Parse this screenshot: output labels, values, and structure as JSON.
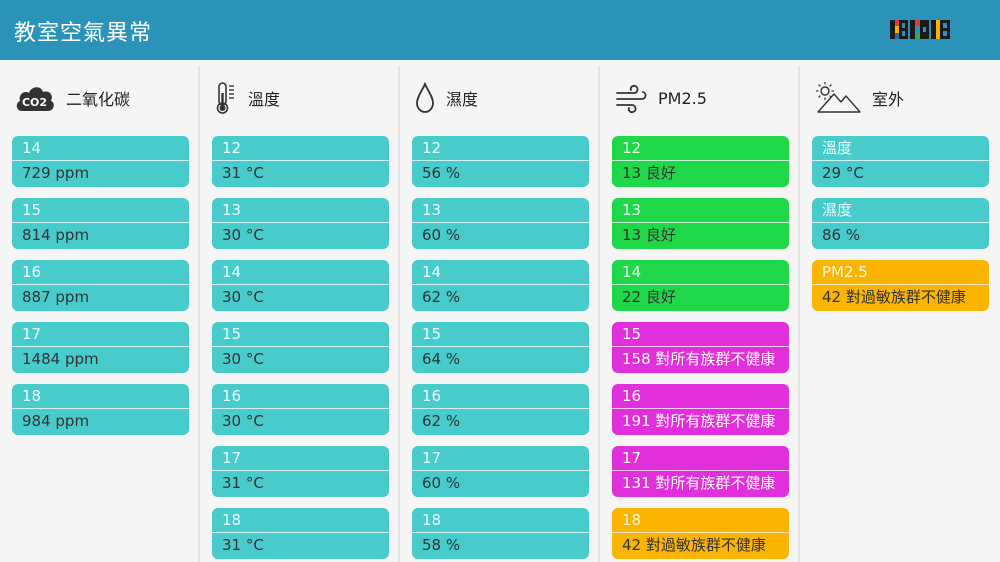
{
  "header": {
    "title": "教室空氣異常",
    "logo_text": "BXB"
  },
  "colors": {
    "header": "#2b93b8",
    "teal": "#48cbcb",
    "green": "#1ed84a",
    "magenta": "#e22fdc",
    "orange": "#fbb400"
  },
  "columns": [
    {
      "key": "co2",
      "label": "二氧化碳",
      "icon": "co2-cloud-icon",
      "icon_text": "CO2",
      "cards": [
        {
          "room": "14",
          "value": "729 ppm",
          "status": "teal"
        },
        {
          "room": "15",
          "value": "814 ppm",
          "status": "teal"
        },
        {
          "room": "16",
          "value": "887 ppm",
          "status": "teal"
        },
        {
          "room": "17",
          "value": "1484 ppm",
          "status": "teal"
        },
        {
          "room": "18",
          "value": "984 ppm",
          "status": "teal"
        }
      ]
    },
    {
      "key": "temperature",
      "label": "溫度",
      "icon": "thermometer-icon",
      "cards": [
        {
          "room": "12",
          "value": "31 °C",
          "status": "teal"
        },
        {
          "room": "13",
          "value": "30 °C",
          "status": "teal"
        },
        {
          "room": "14",
          "value": "30 °C",
          "status": "teal"
        },
        {
          "room": "15",
          "value": "30 °C",
          "status": "teal"
        },
        {
          "room": "16",
          "value": "30 °C",
          "status": "teal"
        },
        {
          "room": "17",
          "value": "31 °C",
          "status": "teal"
        },
        {
          "room": "18",
          "value": "31 °C",
          "status": "teal"
        }
      ]
    },
    {
      "key": "humidity",
      "label": "濕度",
      "icon": "water-drop-icon",
      "cards": [
        {
          "room": "12",
          "value": "56 %",
          "status": "teal"
        },
        {
          "room": "13",
          "value": "60 %",
          "status": "teal"
        },
        {
          "room": "14",
          "value": "62 %",
          "status": "teal"
        },
        {
          "room": "15",
          "value": "64 %",
          "status": "teal"
        },
        {
          "room": "16",
          "value": "62 %",
          "status": "teal"
        },
        {
          "room": "17",
          "value": "60 %",
          "status": "teal"
        },
        {
          "room": "18",
          "value": "58 %",
          "status": "teal"
        }
      ]
    },
    {
      "key": "pm25",
      "label": "PM2.5",
      "icon": "wind-icon",
      "cards": [
        {
          "room": "12",
          "value": "13 良好",
          "status": "green"
        },
        {
          "room": "13",
          "value": "13 良好",
          "status": "green"
        },
        {
          "room": "14",
          "value": "22 良好",
          "status": "green"
        },
        {
          "room": "15",
          "value": "158 對所有族群不健康",
          "status": "magenta"
        },
        {
          "room": "16",
          "value": "191 對所有族群不健康",
          "status": "magenta"
        },
        {
          "room": "17",
          "value": "131 對所有族群不健康",
          "status": "magenta"
        },
        {
          "room": "18",
          "value": "42 對過敏族群不健康",
          "status": "orange"
        }
      ]
    },
    {
      "key": "outdoor",
      "label": "室外",
      "icon": "sun-mountain-icon",
      "cards": [
        {
          "room": "溫度",
          "value": "29 °C",
          "status": "teal"
        },
        {
          "room": "濕度",
          "value": "86 %",
          "status": "teal"
        },
        {
          "room": "PM2.5",
          "value": "42 對過敏族群不健康",
          "status": "orange"
        }
      ]
    }
  ]
}
